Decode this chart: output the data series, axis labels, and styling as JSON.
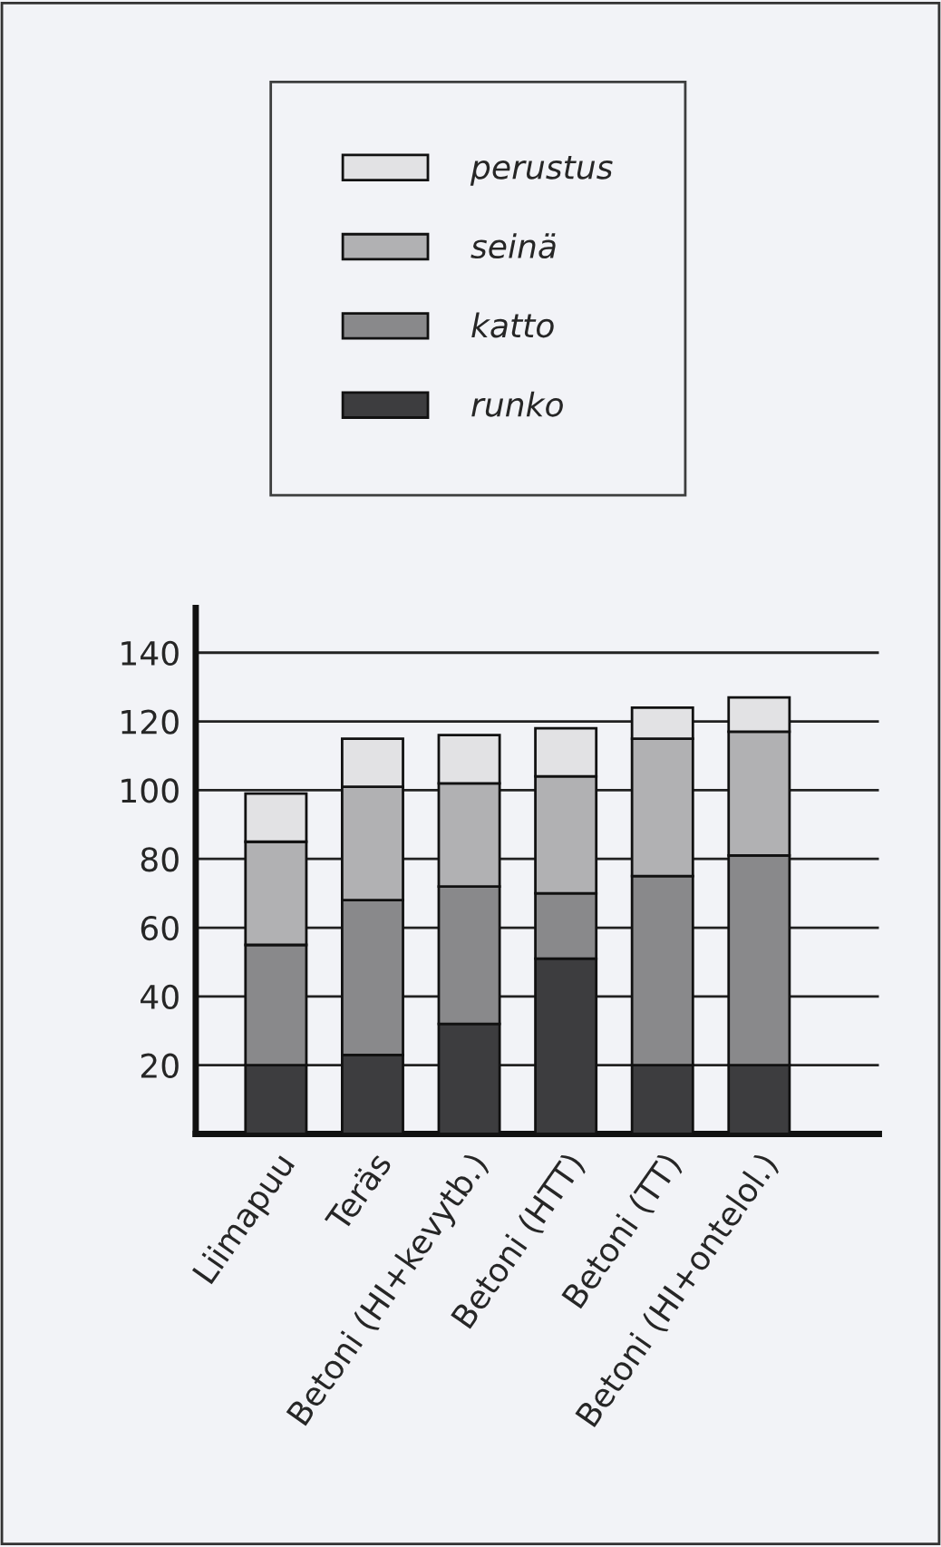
{
  "chart_data": {
    "type": "bar",
    "stacked": true,
    "categories": [
      "Liimapuu",
      "Teräs",
      "Betoni (HI+kevytb.)",
      "Betoni (HTT)",
      "Betoni (TT)",
      "Betoni (HI+ontelol.)"
    ],
    "series": [
      {
        "name": "runko",
        "color": "#3d3d3f",
        "values": [
          20,
          23,
          32,
          51,
          20,
          20
        ]
      },
      {
        "name": "katto",
        "color": "#89898b",
        "values": [
          35,
          45,
          40,
          19,
          55,
          61
        ]
      },
      {
        "name": "seinä",
        "color": "#b1b1b3",
        "values": [
          30,
          33,
          30,
          34,
          40,
          36
        ]
      },
      {
        "name": "perustus",
        "color": "#e2e2e4",
        "values": [
          14,
          14,
          14,
          14,
          9,
          10
        ]
      }
    ],
    "ylim": [
      0,
      153
    ],
    "yticks": [
      {
        "value": 0,
        "label": null
      },
      20,
      40,
      60,
      80,
      100,
      120,
      140
    ],
    "grid": "y",
    "legend": "top"
  }
}
